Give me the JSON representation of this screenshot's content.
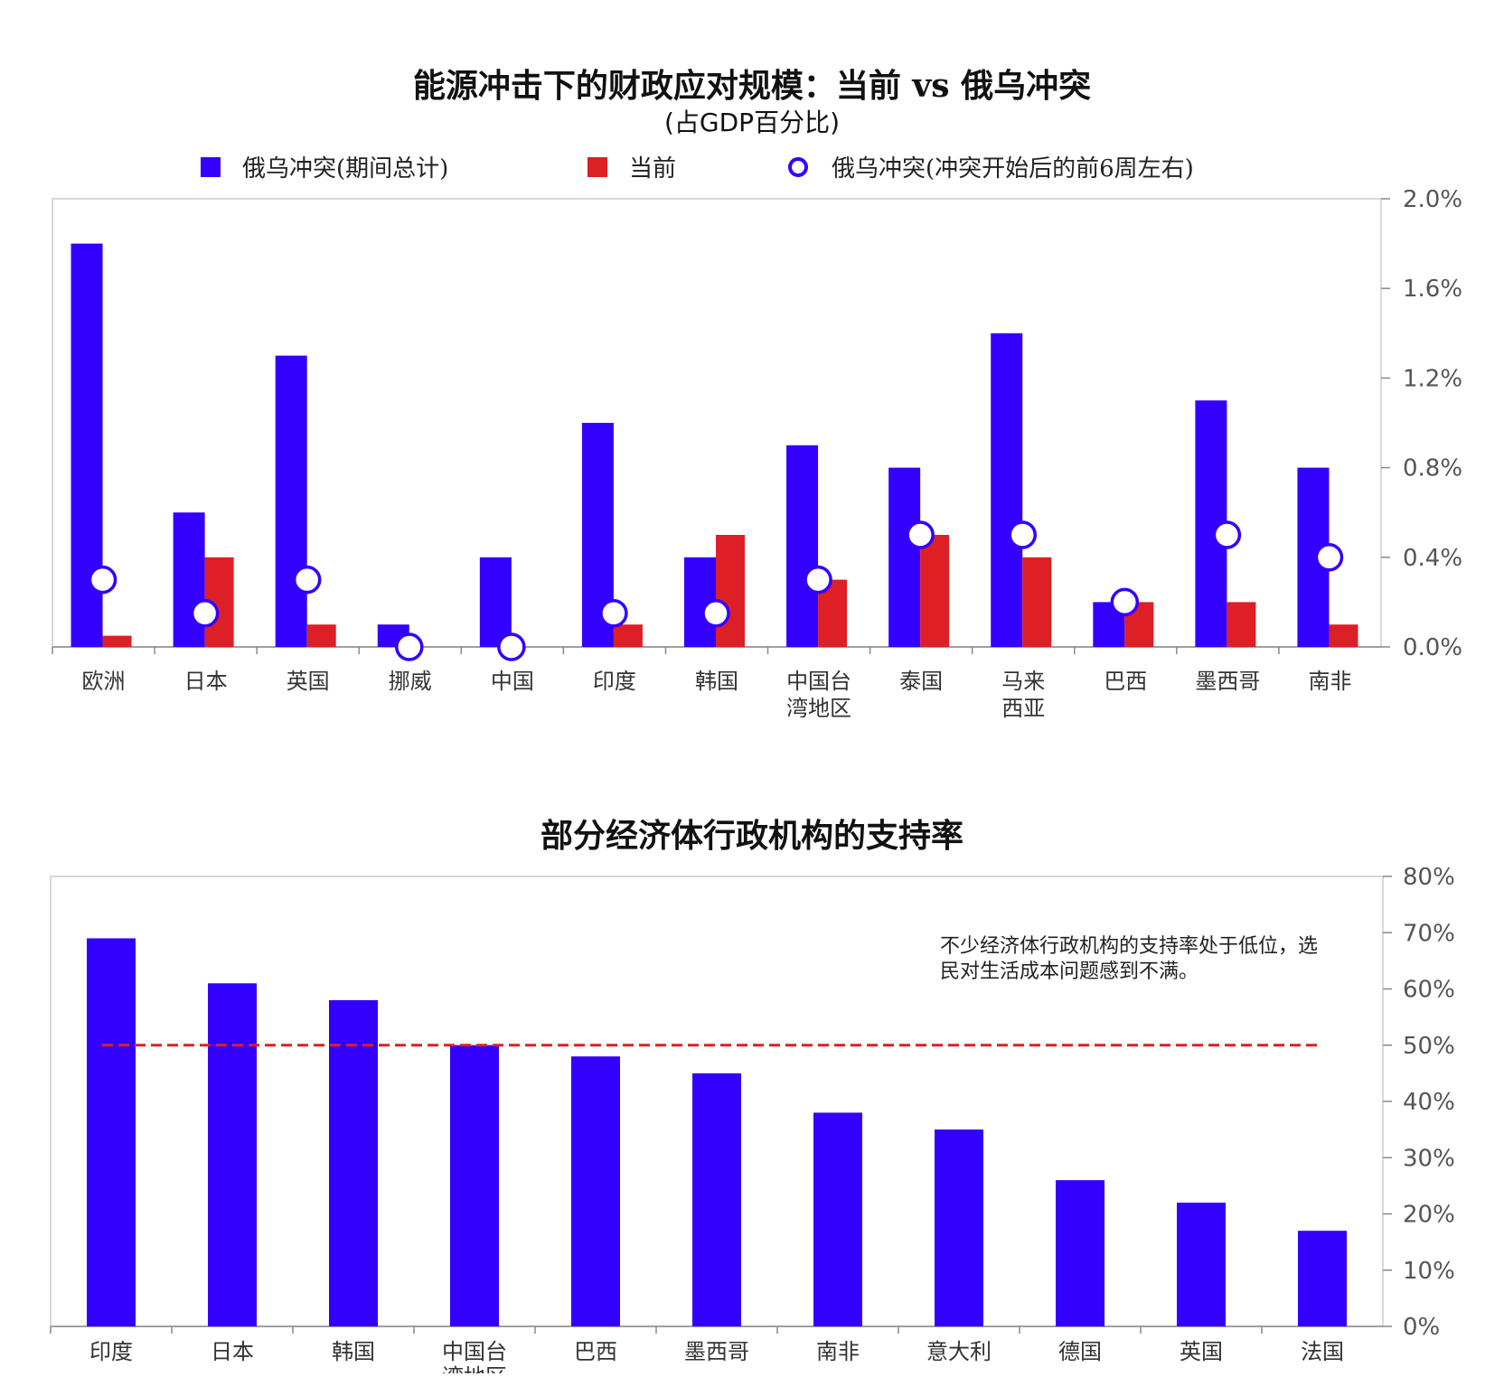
{
  "chart_data": [
    {
      "type": "bar",
      "title": "能源冲击下的财政应对规模：当前 vs 俄乌冲突",
      "subtitle": "(占GDP百分比)",
      "categories": [
        "欧洲",
        "日本",
        "英国",
        "挪威",
        "中国",
        "印度",
        "韩国",
        "中国台湾地区",
        "泰国",
        "马来西亚",
        "巴西",
        "墨西哥",
        "南非"
      ],
      "category_lines": [
        [
          "欧洲"
        ],
        [
          "日本"
        ],
        [
          "英国"
        ],
        [
          "挪威"
        ],
        [
          "中国"
        ],
        [
          "印度"
        ],
        [
          "韩国"
        ],
        [
          "中国台",
          "湾地区"
        ],
        [
          "泰国"
        ],
        [
          "马来",
          "西亚"
        ],
        [
          "巴西"
        ],
        [
          "墨西哥"
        ],
        [
          "南非"
        ]
      ],
      "series": [
        {
          "name": "俄乌冲突(期间总计)",
          "kind": "bar",
          "color": "#3300ff",
          "values": [
            1.8,
            0.6,
            1.3,
            0.1,
            0.4,
            1.0,
            0.4,
            0.9,
            0.8,
            1.4,
            0.2,
            1.1,
            0.8
          ]
        },
        {
          "name": "当前",
          "kind": "bar",
          "color": "#dd1f26",
          "values": [
            0.05,
            0.4,
            0.1,
            0.0,
            0.0,
            0.1,
            0.5,
            0.3,
            0.5,
            0.4,
            0.2,
            0.2,
            0.1
          ]
        },
        {
          "name": "俄乌冲突(冲突开始后的前6周左右)",
          "kind": "marker",
          "color": "#3300ff",
          "values": [
            0.3,
            0.15,
            0.3,
            0.0,
            0.0,
            0.15,
            0.15,
            0.3,
            0.5,
            0.5,
            0.2,
            0.5,
            0.4
          ]
        }
      ],
      "ylim": [
        0,
        2.0
      ],
      "yticks": [
        "0.0%",
        "0.4%",
        "0.8%",
        "1.2%",
        "1.6%",
        "2.0%"
      ],
      "ytick_values": [
        0,
        0.4,
        0.8,
        1.2,
        1.6,
        2.0
      ],
      "y_axis_side": "right",
      "legend_position": "top"
    },
    {
      "type": "bar",
      "title": "部分经济体行政机构的支持率",
      "categories": [
        "印度",
        "日本",
        "韩国",
        "中国台湾地区",
        "巴西",
        "墨西哥",
        "南非",
        "意大利",
        "德国",
        "英国",
        "法国"
      ],
      "category_lines": [
        [
          "印度"
        ],
        [
          "日本"
        ],
        [
          "韩国"
        ],
        [
          "中国台",
          "湾地区"
        ],
        [
          "巴西"
        ],
        [
          "墨西哥"
        ],
        [
          "南非"
        ],
        [
          "意大利"
        ],
        [
          "德国"
        ],
        [
          "英国"
        ],
        [
          "法国"
        ]
      ],
      "values": [
        69,
        61,
        58,
        50,
        48,
        45,
        38,
        35,
        26,
        22,
        17
      ],
      "color": "#3300ff",
      "reference_line": {
        "value": 50,
        "color": "#dd1f26",
        "style": "dashed"
      },
      "ylim": [
        0,
        80
      ],
      "yticks": [
        "0%",
        "10%",
        "20%",
        "30%",
        "40%",
        "50%",
        "60%",
        "70%",
        "80%"
      ],
      "ytick_values": [
        0,
        10,
        20,
        30,
        40,
        50,
        60,
        70,
        80
      ],
      "y_axis_side": "right",
      "annotation": "不少经济体行政机构的支持率处于低位，选民对生活成本问题感到不满。"
    }
  ]
}
